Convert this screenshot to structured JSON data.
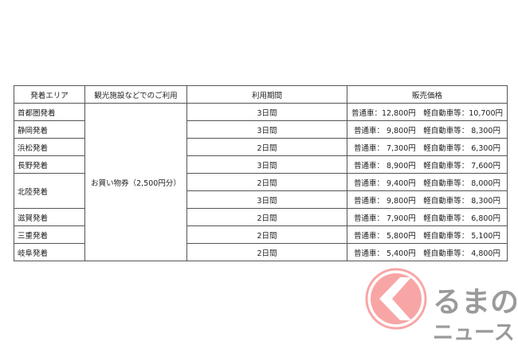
{
  "table": {
    "headers": [
      "発着エリア",
      "観光施設などでのご利用",
      "利用期間",
      "販売価格"
    ],
    "benefit": "お買い物券（2,500円分）",
    "rows": [
      {
        "area": "首都圏発着",
        "period": "3日間",
        "price": "普通車：12,800円　軽自動車等：10,700円"
      },
      {
        "area": "静岡発着",
        "period": "3日間",
        "price": "普通車： 9,800円　軽自動車等： 8,300円"
      },
      {
        "area": "浜松発着",
        "period": "2日間",
        "price": "普通車： 7,300円　軽自動車等： 6,300円"
      },
      {
        "area": "長野発着",
        "period": "3日間",
        "price": "普通車： 8,900円　軽自動車等： 7,600円"
      },
      {
        "area": "北陸発着",
        "period": "2日間",
        "price": "普通車： 9,400円　軽自動車等： 8,000円"
      },
      {
        "area": "",
        "period": "3日間",
        "price": "普通車： 9,800円　軽自動車等： 8,300円"
      },
      {
        "area": "滋賀発着",
        "period": "2日間",
        "price": "普通車： 7,900円　軽自動車等： 6,800円"
      },
      {
        "area": "三重発着",
        "period": "2日間",
        "price": "普通車： 5,800円　軽自動車等： 5,100円"
      },
      {
        "area": "岐阜発着",
        "period": "2日間",
        "price": "普通車： 5,400円　軽自動車等： 4,800円"
      }
    ]
  },
  "watermark": {
    "line1": "るまの",
    "line2": "ニュース",
    "circle_color": "#f8a5a5",
    "text_color": "#9a9a9a"
  }
}
